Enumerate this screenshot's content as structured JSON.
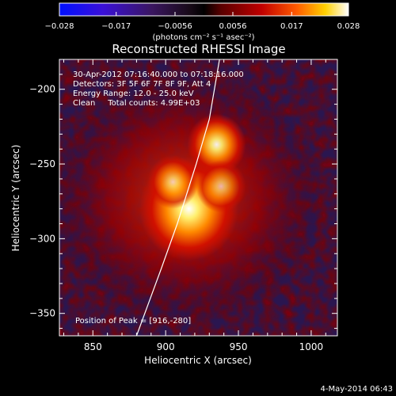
{
  "colorbar": {
    "tick_labels": [
      "−0.028",
      "−0.017",
      "−0.0056",
      "0.0056",
      "0.017",
      "0.028"
    ],
    "ticks": [
      -0.028,
      -0.017,
      -0.0056,
      0.0056,
      0.017,
      0.028
    ],
    "range": [
      -0.028,
      0.028
    ],
    "unit_label": "(photons cm⁻² s⁻¹ asec⁻²)"
  },
  "chart_data": {
    "type": "heatmap",
    "title": "Reconstructed RHESSI Image",
    "xlabel": "Heliocentric X (arcsec)",
    "ylabel": "Heliocentric Y (arcsec)",
    "xlim": [
      827,
      1018
    ],
    "ylim": [
      -365,
      -180
    ],
    "xticks": [
      850,
      900,
      950,
      1000
    ],
    "xtick_labels": [
      "850",
      "900",
      "950",
      "1000"
    ],
    "yticks": [
      -350,
      -300,
      -250,
      -200
    ],
    "ytick_labels": [
      "−350",
      "−300",
      "−250",
      "−200"
    ],
    "sources": [
      {
        "x": 916,
        "y": -280,
        "peak": 0.028
      },
      {
        "x": 935,
        "y": -237,
        "peak": 0.019
      },
      {
        "x": 905,
        "y": -262,
        "peak": 0.013
      },
      {
        "x": 938,
        "y": -265,
        "peak": 0.012
      }
    ],
    "limb_line": [
      [
        880,
        -365
      ],
      [
        897,
        -320
      ],
      [
        908,
        -290
      ],
      [
        921,
        -250
      ],
      [
        930,
        -220
      ],
      [
        937,
        -180
      ]
    ],
    "annotations": [
      "30-Apr-2012 07:16:40.000 to 07:18:16.000",
      "Detectors: 3F 5F 6F 7F 8F 9F, Att 4",
      "Energy Range: 12.0 - 25.0 keV",
      "Clean     Total counts: 4.99E+03"
    ],
    "peak_label": "Position of Peak = [916,-280]",
    "grid": false,
    "colormap": "rainbow-red"
  },
  "footer": {
    "date": "4-May-2014 06:43"
  }
}
